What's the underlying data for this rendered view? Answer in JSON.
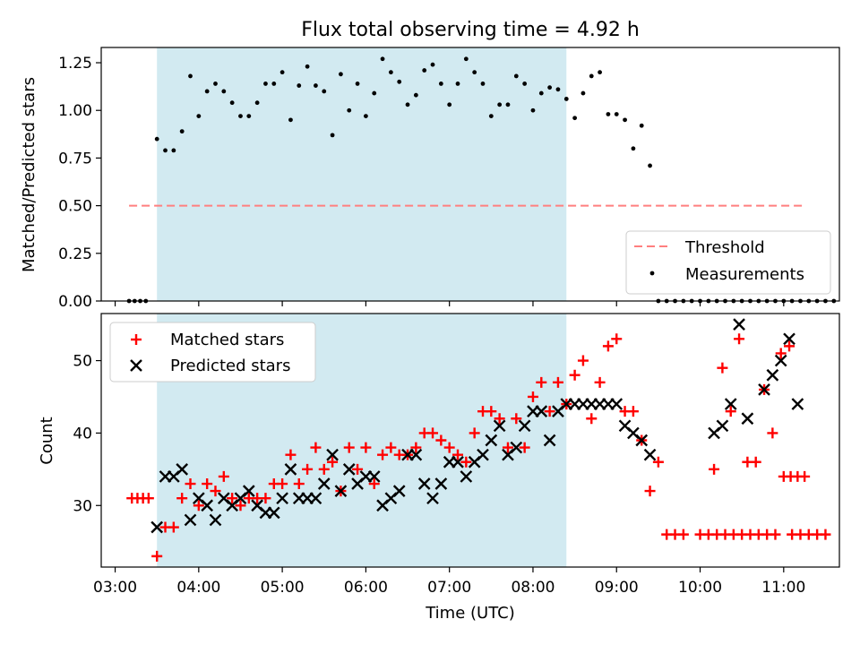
{
  "figure": {
    "title": "Flux total observing time = 4.92 h",
    "background": "#ffffff"
  },
  "colors": {
    "shade": "#add8e6",
    "threshold": "#ff7f7f",
    "measurement": "#000000",
    "matched": "#ff0000",
    "predicted": "#000000"
  },
  "chart_data": [
    {
      "type": "scatter",
      "title": "Flux total observing time = 4.92 h",
      "xlabel": "",
      "ylabel": "Matched/Predicted stars",
      "x_unit": "time (UTC)",
      "xlim": [
        "02:50",
        "11:40"
      ],
      "ylim": [
        0,
        1.33
      ],
      "yticks": [
        "0.00",
        "0.25",
        "0.50",
        "0.75",
        "1.00",
        "1.25"
      ],
      "yticks_values": [
        0,
        0.25,
        0.5,
        0.75,
        1.0,
        1.25
      ],
      "shaded_span": [
        "03:30",
        "08:24"
      ],
      "legend_position": "lower right",
      "threshold": {
        "name": "Threshold",
        "value": 0.5,
        "x_range": [
          "03:10",
          "11:15"
        ]
      },
      "series": [
        {
          "name": "Measurements",
          "points": [
            [
              "03:10",
              0
            ],
            [
              "03:14",
              0
            ],
            [
              "03:18",
              0
            ],
            [
              "03:22",
              0
            ],
            [
              "03:30",
              0.85
            ],
            [
              "03:36",
              0.79
            ],
            [
              "03:42",
              0.79
            ],
            [
              "03:48",
              0.89
            ],
            [
              "03:54",
              1.18
            ],
            [
              "04:00",
              0.97
            ],
            [
              "04:06",
              1.1
            ],
            [
              "04:12",
              1.14
            ],
            [
              "04:18",
              1.1
            ],
            [
              "04:24",
              1.04
            ],
            [
              "04:30",
              0.97
            ],
            [
              "04:36",
              0.97
            ],
            [
              "04:42",
              1.04
            ],
            [
              "04:48",
              1.14
            ],
            [
              "04:54",
              1.14
            ],
            [
              "05:00",
              1.2
            ],
            [
              "05:06",
              0.95
            ],
            [
              "05:12",
              1.13
            ],
            [
              "05:18",
              1.23
            ],
            [
              "05:24",
              1.13
            ],
            [
              "05:30",
              1.1
            ],
            [
              "05:36",
              0.87
            ],
            [
              "05:42",
              1.19
            ],
            [
              "05:48",
              1.0
            ],
            [
              "05:54",
              1.14
            ],
            [
              "06:00",
              0.97
            ],
            [
              "06:06",
              1.09
            ],
            [
              "06:12",
              1.27
            ],
            [
              "06:18",
              1.2
            ],
            [
              "06:24",
              1.15
            ],
            [
              "06:30",
              1.03
            ],
            [
              "06:36",
              1.08
            ],
            [
              "06:42",
              1.21
            ],
            [
              "06:48",
              1.24
            ],
            [
              "06:54",
              1.14
            ],
            [
              "07:00",
              1.03
            ],
            [
              "07:06",
              1.14
            ],
            [
              "07:12",
              1.27
            ],
            [
              "07:18",
              1.2
            ],
            [
              "07:24",
              1.14
            ],
            [
              "07:30",
              0.97
            ],
            [
              "07:36",
              1.03
            ],
            [
              "07:42",
              1.03
            ],
            [
              "07:48",
              1.18
            ],
            [
              "07:54",
              1.14
            ],
            [
              "08:00",
              1.0
            ],
            [
              "08:06",
              1.09
            ],
            [
              "08:12",
              1.12
            ],
            [
              "08:18",
              1.11
            ],
            [
              "08:24",
              1.06
            ],
            [
              "08:30",
              0.96
            ],
            [
              "08:36",
              1.09
            ],
            [
              "08:42",
              1.18
            ],
            [
              "08:48",
              1.2
            ],
            [
              "08:54",
              0.98
            ],
            [
              "09:00",
              0.98
            ],
            [
              "09:06",
              0.95
            ],
            [
              "09:12",
              0.8
            ],
            [
              "09:18",
              0.92
            ],
            [
              "09:24",
              0.71
            ],
            [
              "09:30",
              0
            ],
            [
              "09:36",
              0
            ],
            [
              "09:42",
              0
            ],
            [
              "09:48",
              0
            ],
            [
              "09:54",
              0
            ],
            [
              "10:00",
              0
            ],
            [
              "10:06",
              0
            ],
            [
              "10:12",
              0
            ],
            [
              "10:18",
              0
            ],
            [
              "10:24",
              0
            ],
            [
              "10:30",
              0
            ],
            [
              "10:36",
              0
            ],
            [
              "10:42",
              0
            ],
            [
              "10:48",
              0
            ],
            [
              "10:54",
              0
            ],
            [
              "11:00",
              0
            ],
            [
              "11:06",
              0
            ],
            [
              "11:12",
              0
            ],
            [
              "11:18",
              0
            ],
            [
              "11:24",
              0
            ],
            [
              "11:30",
              0
            ],
            [
              "11:36",
              0
            ]
          ]
        }
      ]
    },
    {
      "type": "scatter",
      "title": "",
      "xlabel": "Time (UTC)",
      "ylabel": "Count",
      "xlim": [
        "02:50",
        "11:40"
      ],
      "ylim": [
        21.5,
        56.5
      ],
      "xticks": [
        "03:00",
        "04:00",
        "05:00",
        "06:00",
        "07:00",
        "08:00",
        "09:00",
        "10:00",
        "11:00"
      ],
      "yticks": [
        "30",
        "40",
        "50"
      ],
      "yticks_values": [
        30,
        40,
        50
      ],
      "shaded_span": [
        "03:30",
        "08:24"
      ],
      "legend_position": "upper left",
      "series": [
        {
          "name": "Matched stars",
          "marker": "plus",
          "points": [
            [
              "03:12",
              31
            ],
            [
              "03:16",
              31
            ],
            [
              "03:20",
              31
            ],
            [
              "03:24",
              31
            ],
            [
              "03:30",
              23
            ],
            [
              "03:36",
              27
            ],
            [
              "03:42",
              27
            ],
            [
              "03:48",
              31
            ],
            [
              "03:54",
              33
            ],
            [
              "04:00",
              30
            ],
            [
              "04:06",
              33
            ],
            [
              "04:12",
              32
            ],
            [
              "04:18",
              34
            ],
            [
              "04:24",
              31
            ],
            [
              "04:30",
              30
            ],
            [
              "04:36",
              31
            ],
            [
              "04:42",
              31
            ],
            [
              "04:48",
              31
            ],
            [
              "04:54",
              33
            ],
            [
              "05:00",
              33
            ],
            [
              "05:06",
              37
            ],
            [
              "05:12",
              33
            ],
            [
              "05:18",
              35
            ],
            [
              "05:24",
              38
            ],
            [
              "05:30",
              35
            ],
            [
              "05:36",
              36
            ],
            [
              "05:42",
              32
            ],
            [
              "05:48",
              38
            ],
            [
              "05:54",
              35
            ],
            [
              "06:00",
              38
            ],
            [
              "06:06",
              33
            ],
            [
              "06:12",
              37
            ],
            [
              "06:18",
              38
            ],
            [
              "06:24",
              37
            ],
            [
              "06:30",
              37
            ],
            [
              "06:36",
              38
            ],
            [
              "06:42",
              40
            ],
            [
              "06:48",
              40
            ],
            [
              "06:54",
              39
            ],
            [
              "07:00",
              38
            ],
            [
              "07:06",
              37
            ],
            [
              "07:12",
              36
            ],
            [
              "07:18",
              40
            ],
            [
              "07:24",
              43
            ],
            [
              "07:30",
              43
            ],
            [
              "07:36",
              42
            ],
            [
              "07:42",
              38
            ],
            [
              "07:48",
              42
            ],
            [
              "07:54",
              38
            ],
            [
              "08:00",
              45
            ],
            [
              "08:06",
              47
            ],
            [
              "08:12",
              43
            ],
            [
              "08:18",
              47
            ],
            [
              "08:24",
              44
            ],
            [
              "08:30",
              48
            ],
            [
              "08:36",
              50
            ],
            [
              "08:42",
              42
            ],
            [
              "08:48",
              47
            ],
            [
              "08:54",
              52
            ],
            [
              "09:00",
              53
            ],
            [
              "09:06",
              43
            ],
            [
              "09:12",
              43
            ],
            [
              "09:18",
              39
            ],
            [
              "09:24",
              32
            ],
            [
              "09:30",
              36
            ],
            [
              "09:36",
              26
            ],
            [
              "09:42",
              26
            ],
            [
              "09:48",
              26
            ],
            [
              "10:00",
              26
            ],
            [
              "10:06",
              26
            ],
            [
              "10:12",
              26
            ],
            [
              "10:18",
              26
            ],
            [
              "10:24",
              26
            ],
            [
              "10:30",
              26
            ],
            [
              "10:36",
              26
            ],
            [
              "10:42",
              26
            ],
            [
              "10:48",
              26
            ],
            [
              "10:54",
              26
            ],
            [
              "11:06",
              26
            ],
            [
              "11:12",
              26
            ],
            [
              "11:18",
              26
            ],
            [
              "11:24",
              26
            ],
            [
              "11:30",
              26
            ],
            [
              "10:10",
              35
            ],
            [
              "10:16",
              49
            ],
            [
              "10:22",
              43
            ],
            [
              "10:28",
              53
            ],
            [
              "10:34",
              36
            ],
            [
              "10:40",
              36
            ],
            [
              "10:46",
              46
            ],
            [
              "10:52",
              40
            ],
            [
              "10:58",
              51
            ],
            [
              "11:04",
              52
            ],
            [
              "11:00",
              34
            ],
            [
              "11:05",
              34
            ],
            [
              "11:10",
              34
            ],
            [
              "11:15",
              34
            ]
          ]
        },
        {
          "name": "Predicted stars",
          "marker": "x",
          "points": [
            [
              "03:30",
              27
            ],
            [
              "03:36",
              34
            ],
            [
              "03:42",
              34
            ],
            [
              "03:48",
              35
            ],
            [
              "03:54",
              28
            ],
            [
              "04:00",
              31
            ],
            [
              "04:06",
              30
            ],
            [
              "04:12",
              28
            ],
            [
              "04:18",
              31
            ],
            [
              "04:24",
              30
            ],
            [
              "04:30",
              31
            ],
            [
              "04:36",
              32
            ],
            [
              "04:42",
              30
            ],
            [
              "04:48",
              29
            ],
            [
              "04:54",
              29
            ],
            [
              "05:00",
              31
            ],
            [
              "05:06",
              35
            ],
            [
              "05:12",
              31
            ],
            [
              "05:18",
              31
            ],
            [
              "05:24",
              31
            ],
            [
              "05:30",
              33
            ],
            [
              "05:36",
              37
            ],
            [
              "05:42",
              32
            ],
            [
              "05:48",
              35
            ],
            [
              "05:54",
              33
            ],
            [
              "06:00",
              34
            ],
            [
              "06:06",
              34
            ],
            [
              "06:12",
              30
            ],
            [
              "06:18",
              31
            ],
            [
              "06:24",
              32
            ],
            [
              "06:30",
              37
            ],
            [
              "06:36",
              37
            ],
            [
              "06:42",
              33
            ],
            [
              "06:48",
              31
            ],
            [
              "06:54",
              33
            ],
            [
              "07:00",
              36
            ],
            [
              "07:06",
              36
            ],
            [
              "07:12",
              34
            ],
            [
              "07:18",
              36
            ],
            [
              "07:24",
              37
            ],
            [
              "07:30",
              39
            ],
            [
              "07:36",
              41
            ],
            [
              "07:42",
              37
            ],
            [
              "07:48",
              38
            ],
            [
              "07:54",
              41
            ],
            [
              "08:00",
              43
            ],
            [
              "08:06",
              43
            ],
            [
              "08:12",
              39
            ],
            [
              "08:18",
              43
            ],
            [
              "08:24",
              44
            ],
            [
              "08:30",
              44
            ],
            [
              "08:36",
              44
            ],
            [
              "08:42",
              44
            ],
            [
              "08:48",
              44
            ],
            [
              "08:54",
              44
            ],
            [
              "09:00",
              44
            ],
            [
              "09:06",
              41
            ],
            [
              "09:12",
              40
            ],
            [
              "09:18",
              39
            ],
            [
              "09:24",
              37
            ],
            [
              "10:10",
              40
            ],
            [
              "10:16",
              41
            ],
            [
              "10:22",
              44
            ],
            [
              "10:28",
              55
            ],
            [
              "10:34",
              42
            ],
            [
              "10:46",
              46
            ],
            [
              "10:52",
              48
            ],
            [
              "10:58",
              50
            ],
            [
              "11:04",
              53
            ],
            [
              "11:10",
              44
            ]
          ]
        }
      ]
    }
  ]
}
